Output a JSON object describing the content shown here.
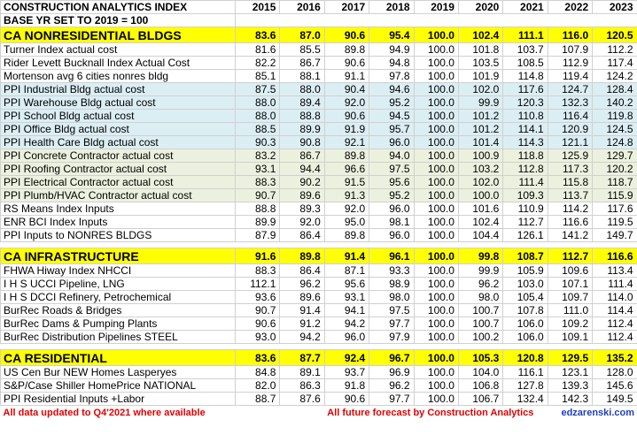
{
  "header": {
    "title": "CONSTRUCTION ANALYTICS INDEX",
    "subtitle": "BASE YR SET TO 2019 = 100",
    "years": [
      "2015",
      "2016",
      "2017",
      "2018",
      "2019",
      "2020",
      "2021",
      "2022",
      "2023"
    ]
  },
  "sections": [
    {
      "title": "CA NONRESIDENTIAL BLDGS",
      "values": [
        "83.6",
        "87.0",
        "90.6",
        "95.4",
        "100.0",
        "102.4",
        "111.1",
        "116.0",
        "120.5"
      ],
      "rows": [
        {
          "label": "Turner Index actual cost",
          "values": [
            "81.6",
            "85.5",
            "89.8",
            "94.9",
            "100.0",
            "101.8",
            "103.7",
            "107.9",
            "112.2"
          ]
        },
        {
          "label": "Rider Levett Bucknall Index Actual Cost",
          "values": [
            "82.2",
            "86.7",
            "90.6",
            "94.8",
            "100.0",
            "103.5",
            "108.5",
            "112.9",
            "117.4"
          ]
        },
        {
          "label": "Mortenson avg 6 cities nonres bldg",
          "values": [
            "85.1",
            "88.1",
            "91.1",
            "97.8",
            "100.0",
            "101.9",
            "114.8",
            "119.4",
            "124.2"
          ]
        },
        {
          "label": "PPI Industrial Bldg actual cost",
          "color": "#dbeef4",
          "values": [
            "87.5",
            "88.0",
            "90.4",
            "94.6",
            "100.0",
            "102.0",
            "117.6",
            "124.7",
            "128.4"
          ]
        },
        {
          "label": "PPI Warehouse Bldg actual cost",
          "color": "#dbeef4",
          "values": [
            "88.0",
            "89.4",
            "92.0",
            "95.2",
            "100.0",
            "99.9",
            "120.3",
            "132.3",
            "140.2"
          ]
        },
        {
          "label": "PPI School Bldg actual cost",
          "color": "#dbeef4",
          "values": [
            "88.0",
            "88.8",
            "90.6",
            "94.5",
            "100.0",
            "101.2",
            "110.8",
            "116.4",
            "119.8"
          ]
        },
        {
          "label": "PPI Office Bldg actual cost",
          "color": "#dbeef4",
          "values": [
            "88.5",
            "89.9",
            "91.9",
            "95.7",
            "100.0",
            "101.2",
            "114.1",
            "120.9",
            "124.5"
          ]
        },
        {
          "label": "PPI Health Care Bldg actual cost",
          "color": "#dbeef4",
          "values": [
            "90.3",
            "90.8",
            "92.1",
            "96.0",
            "100.0",
            "101.4",
            "114.3",
            "121.1",
            "124.8"
          ]
        },
        {
          "label": "PPI Concrete Contractor actual cost",
          "color": "#ebf1de",
          "values": [
            "83.2",
            "86.7",
            "89.8",
            "94.0",
            "100.0",
            "100.9",
            "118.8",
            "125.9",
            "129.7"
          ]
        },
        {
          "label": "PPI Roofing Contractor actual cost",
          "color": "#ebf1de",
          "values": [
            "93.1",
            "94.4",
            "96.6",
            "97.5",
            "100.0",
            "103.2",
            "112.8",
            "117.3",
            "120.2"
          ]
        },
        {
          "label": "PPI Electrical Contractor actual cost",
          "color": "#ebf1de",
          "values": [
            "88.3",
            "90.2",
            "91.5",
            "95.6",
            "100.0",
            "102.0",
            "111.4",
            "115.8",
            "118.7"
          ]
        },
        {
          "label": "PPI Plumb/HVAC Contractor actual cost",
          "color": "#ebf1de",
          "values": [
            "90.7",
            "89.6",
            "91.3",
            "95.2",
            "100.0",
            "100.0",
            "109.3",
            "113.7",
            "115.9"
          ]
        },
        {
          "label": "RS Means Index Inputs",
          "values": [
            "88.8",
            "89.3",
            "92.0",
            "96.0",
            "100.0",
            "101.6",
            "110.9",
            "114.2",
            "117.6"
          ]
        },
        {
          "label": "ENR BCI Index Inputs",
          "values": [
            "89.9",
            "92.0",
            "95.0",
            "98.1",
            "100.0",
            "102.4",
            "112.7",
            "116.6",
            "119.5"
          ]
        },
        {
          "label": "PPI Inputs to NONRES BLDGS",
          "values": [
            "87.9",
            "86.4",
            "89.8",
            "96.0",
            "100.0",
            "104.4",
            "126.1",
            "141.2",
            "149.7"
          ]
        }
      ]
    },
    {
      "title": "CA INFRASTRUCTURE",
      "values": [
        "91.6",
        "89.8",
        "91.4",
        "96.1",
        "100.0",
        "99.8",
        "108.7",
        "112.7",
        "116.6"
      ],
      "rows": [
        {
          "label": "FHWA Hiway Index NHCCI",
          "values": [
            "88.3",
            "86.4",
            "87.1",
            "93.3",
            "100.0",
            "99.9",
            "105.9",
            "109.6",
            "113.4"
          ]
        },
        {
          "label": "I H S UCCI Pipeline, LNG",
          "values": [
            "112.1",
            "96.2",
            "95.6",
            "98.9",
            "100.0",
            "96.2",
            "103.0",
            "107.1",
            "111.4"
          ]
        },
        {
          "label": "I H S DCCI Refinery, Petrochemical",
          "values": [
            "93.6",
            "89.6",
            "93.1",
            "98.0",
            "100.0",
            "98.0",
            "105.4",
            "109.7",
            "114.0"
          ]
        },
        {
          "label": "BurRec Roads & Bridges",
          "values": [
            "90.7",
            "91.4",
            "94.1",
            "97.5",
            "100.0",
            "100.7",
            "107.8",
            "111.0",
            "114.4"
          ]
        },
        {
          "label": "BurRec Dams & Pumping Plants",
          "values": [
            "90.6",
            "91.2",
            "94.2",
            "97.7",
            "100.0",
            "100.7",
            "106.0",
            "109.2",
            "112.4"
          ]
        },
        {
          "label": "BurRec Distribution Pipelines STEEL",
          "values": [
            "93.0",
            "94.2",
            "96.0",
            "97.9",
            "100.0",
            "100.2",
            "106.0",
            "109.1",
            "112.4"
          ]
        }
      ]
    },
    {
      "title": "CA RESIDENTIAL",
      "values": [
        "83.6",
        "87.7",
        "92.4",
        "96.7",
        "100.0",
        "105.3",
        "120.8",
        "129.5",
        "135.2"
      ],
      "rows": [
        {
          "label": "US Cen Bur NEW Homes Lasperyes",
          "values": [
            "84.8",
            "89.1",
            "93.7",
            "96.9",
            "100.0",
            "104.0",
            "116.1",
            "123.1",
            "128.0"
          ]
        },
        {
          "label": "S&P/Case Shiller HomePrice NATIONAL",
          "values": [
            "82.0",
            "86.3",
            "91.8",
            "96.2",
            "100.0",
            "106.8",
            "127.8",
            "139.3",
            "145.6"
          ]
        },
        {
          "label": "PPI Residential Inputs +Labor",
          "values": [
            "88.7",
            "87.6",
            "90.6",
            "97.7",
            "100.0",
            "106.7",
            "132.4",
            "142.3",
            "149.5"
          ]
        }
      ]
    }
  ],
  "footer": {
    "left": "All data updated to Q4'2021 where available",
    "center": "All future forecast by Construction Analytics",
    "right": "edzarenski.com"
  }
}
